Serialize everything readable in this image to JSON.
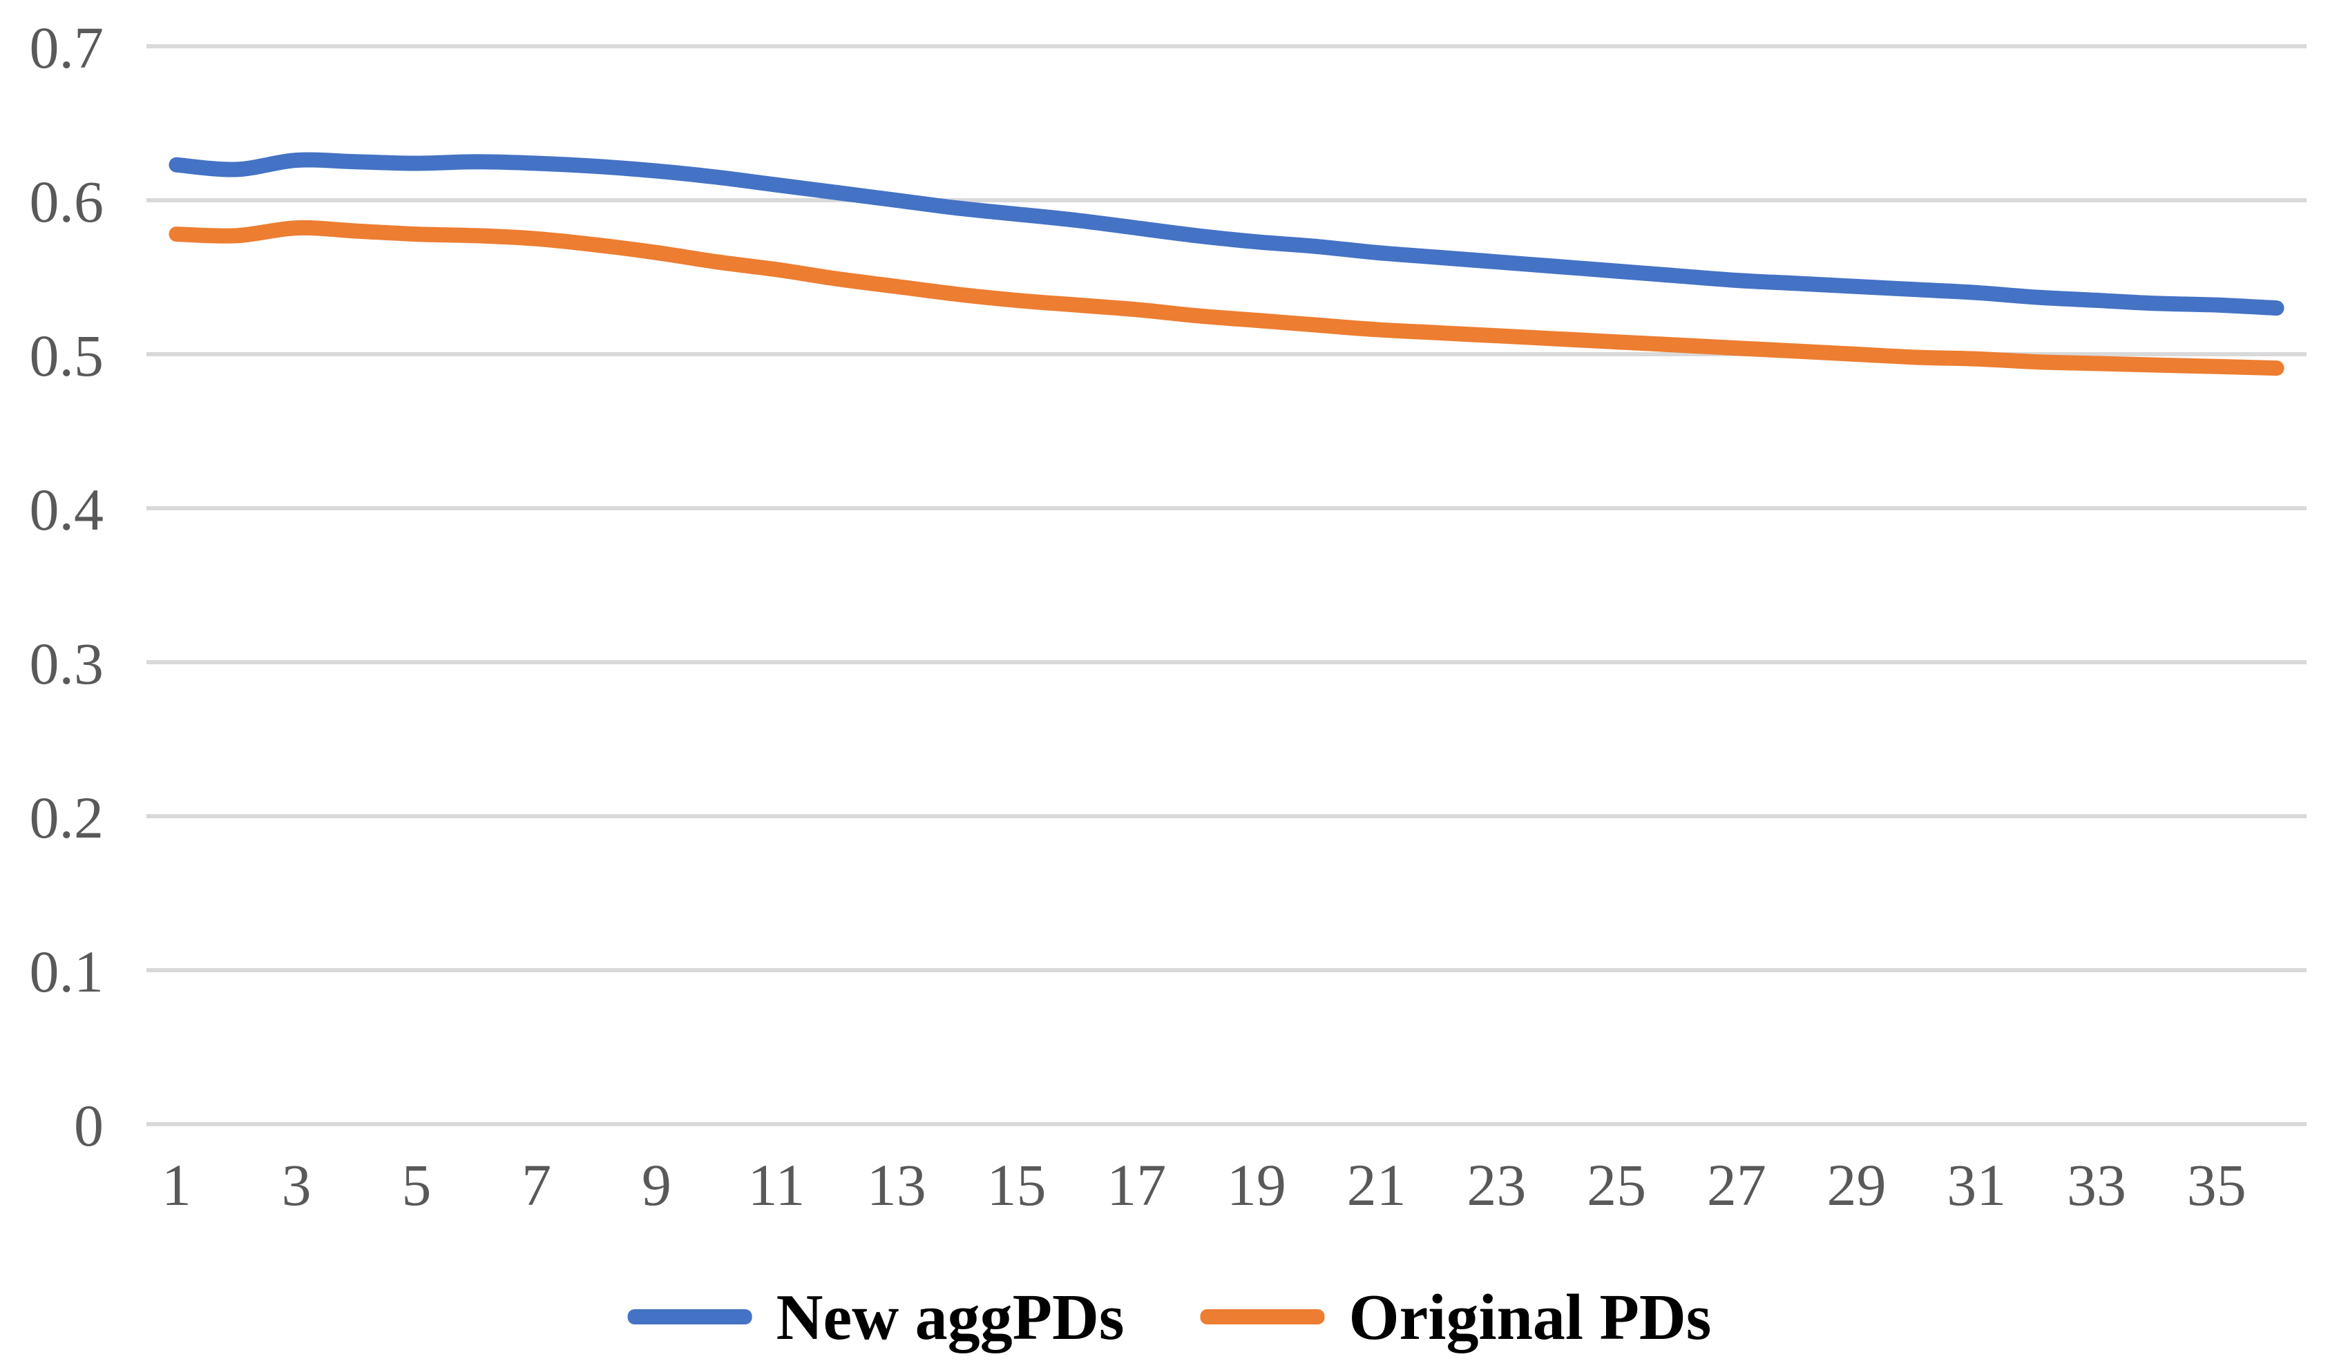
{
  "chart_data": {
    "type": "line",
    "title": "",
    "xlabel": "",
    "ylabel": "",
    "x": [
      1,
      2,
      3,
      4,
      5,
      6,
      7,
      8,
      9,
      10,
      11,
      12,
      13,
      14,
      15,
      16,
      17,
      18,
      19,
      20,
      21,
      22,
      23,
      24,
      25,
      26,
      27,
      28,
      29,
      30,
      31,
      32,
      33,
      34,
      35,
      36
    ],
    "x_tick_labels": [
      "1",
      "3",
      "5",
      "7",
      "9",
      "11",
      "13",
      "15",
      "17",
      "19",
      "21",
      "23",
      "25",
      "27",
      "29",
      "31",
      "33",
      "35"
    ],
    "x_ticks_shown": [
      1,
      3,
      5,
      7,
      9,
      11,
      13,
      15,
      17,
      19,
      21,
      23,
      25,
      27,
      29,
      31,
      33,
      35
    ],
    "y_ticks": [
      0,
      0.1,
      0.2,
      0.3,
      0.4,
      0.5,
      0.6,
      0.7
    ],
    "y_tick_labels": [
      "0",
      "0.1",
      "0.2",
      "0.3",
      "0.4",
      "0.5",
      "0.6",
      "0.7"
    ],
    "ylim": [
      0,
      0.7
    ],
    "grid": "horizontal",
    "line_style": "smooth",
    "legend_position": "bottom-center",
    "series": [
      {
        "name": "New aggPDs",
        "color": "#4472C4",
        "values": [
          0.623,
          0.62,
          0.626,
          0.625,
          0.624,
          0.625,
          0.624,
          0.622,
          0.619,
          0.615,
          0.61,
          0.605,
          0.6,
          0.595,
          0.591,
          0.587,
          0.582,
          0.577,
          0.573,
          0.57,
          0.566,
          0.563,
          0.56,
          0.557,
          0.554,
          0.551,
          0.548,
          0.546,
          0.544,
          0.542,
          0.54,
          0.537,
          0.535,
          0.533,
          0.532,
          0.53
        ]
      },
      {
        "name": "Original PDs",
        "color": "#ED7D31",
        "values": [
          0.578,
          0.577,
          0.582,
          0.58,
          0.578,
          0.577,
          0.575,
          0.571,
          0.566,
          0.56,
          0.555,
          0.549,
          0.544,
          0.539,
          0.535,
          0.532,
          0.529,
          0.525,
          0.522,
          0.519,
          0.516,
          0.514,
          0.512,
          0.51,
          0.508,
          0.506,
          0.504,
          0.502,
          0.5,
          0.498,
          0.497,
          0.495,
          0.494,
          0.493,
          0.492,
          0.491
        ]
      }
    ]
  },
  "colors": {
    "background": "#FFFFFF",
    "gridline": "#D9D9D9",
    "axis_text": "#595959",
    "legend_text": "#000000",
    "series_blue": "#4472C4",
    "series_orange": "#ED7D31"
  }
}
